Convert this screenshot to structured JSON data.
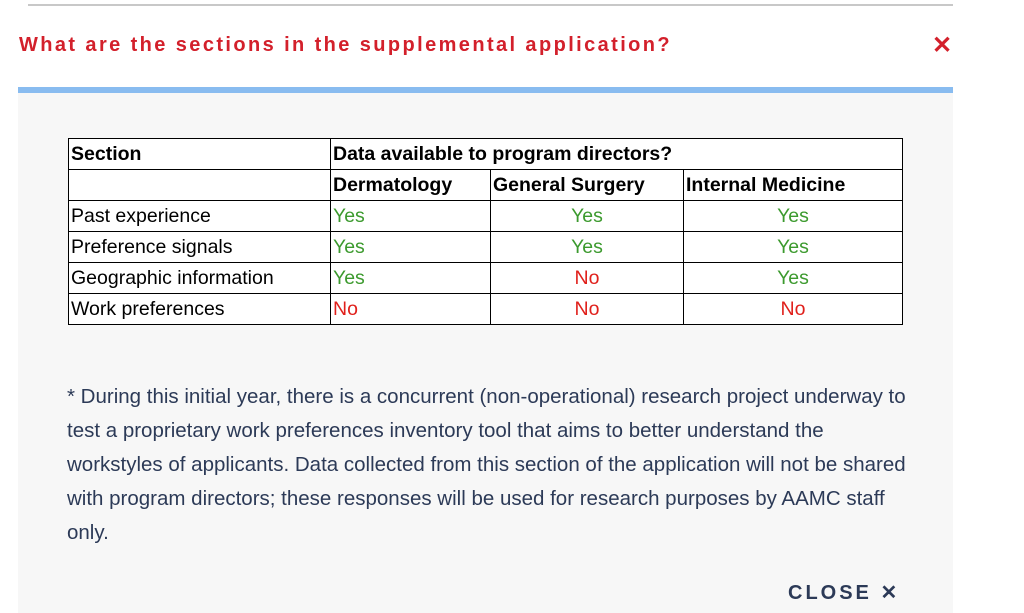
{
  "modal": {
    "title": "What are the sections in the supplemental application?",
    "close_icon": "close-x-icon",
    "close_glyph": "✕",
    "close_label": "CLOSE ✕",
    "accent_color": "#d3202b",
    "bar_color": "#89bcf0"
  },
  "table": {
    "header_section": "Section",
    "header_group": "Data available to program directors?",
    "columns": [
      "Dermatology",
      "General Surgery",
      "Internal Medicine"
    ],
    "rows": [
      {
        "section": "Past experience",
        "values": [
          "Yes",
          "Yes",
          "Yes"
        ]
      },
      {
        "section": "Preference signals",
        "values": [
          "Yes",
          "Yes",
          "Yes"
        ]
      },
      {
        "section": "Geographic information",
        "values": [
          "Yes",
          "No",
          "Yes"
        ]
      },
      {
        "section": "Work preferences",
        "values": [
          "No",
          "No",
          "No"
        ]
      }
    ]
  },
  "note": "* During this initial year, there is a concurrent (non-operational) research project underway to test a proprietary work preferences inventory tool that aims to better understand the workstyles of applicants. Data collected from this section of the application will not be shared with program directors; these responses will be used for research purposes by AAMC staff only."
}
